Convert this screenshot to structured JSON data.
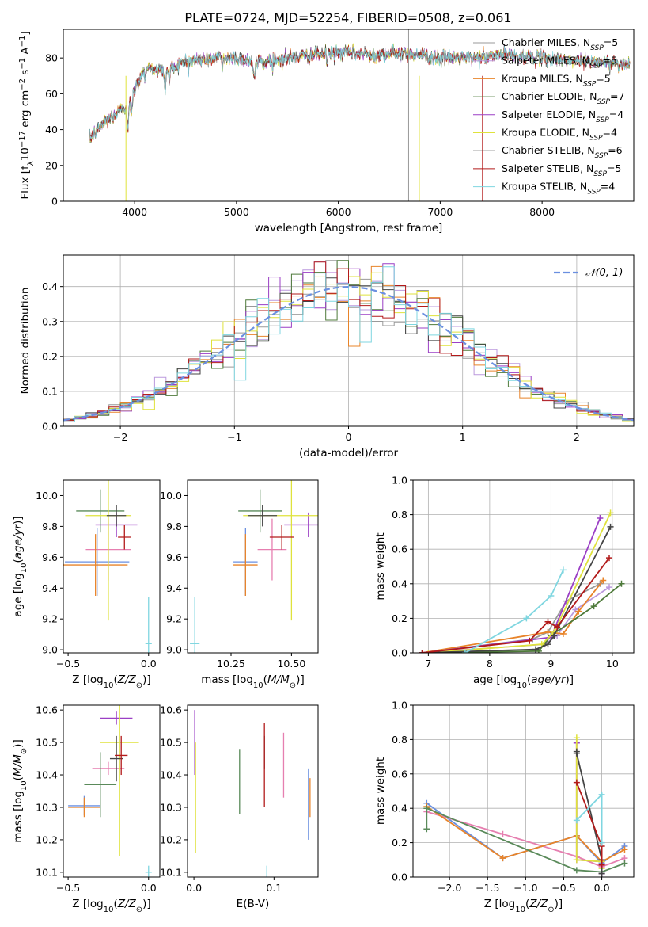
{
  "figure": {
    "title": "PLATE=0724, MJD=52254, FIBERID=0508, z=0.061"
  },
  "colors": {
    "Chabrier MILES": "#999999",
    "Salpeter MILES": "#bb99dd",
    "Kroupa MILES": "#e8842a",
    "Chabrier ELODIE": "#4e7a3a",
    "Salpeter ELODIE": "#9b3fc5",
    "Kroupa ELODIE": "#dfe23c",
    "Chabrier STELIB": "#444444",
    "Salpeter STELIB": "#b21a1a",
    "Kroupa STELIB": "#7fd6e0",
    "Panel blue": "#6a8fe0",
    "Panel pink": "#e67fb0",
    "Panel green": "#5a8a5a",
    "grid": "#b0b0b0"
  },
  "chart_data": [
    {
      "type": "line",
      "id": "spectrum",
      "xlabel": "wavelength [Angstrom, rest frame]",
      "ylabel": "Flux [f_λ10^-17 erg cm^-2 s^-1 A^-1]",
      "xlim": [
        3300,
        8900
      ],
      "ylim": [
        0,
        96
      ],
      "xticks": [
        4000,
        5000,
        6000,
        7000,
        8000
      ],
      "yticks": [
        0,
        20,
        40,
        60,
        80
      ],
      "legend_position": "top-right",
      "legend": [
        "Chabrier MILES, N_SSP=5",
        "Salpeter MILES, N_SSP=5",
        "Kroupa MILES, N_SSP=5",
        "Chabrier ELODIE, N_SSP=7",
        "Salpeter ELODIE, N_SSP=4",
        "Kroupa ELODIE, N_SSP=4",
        "Chabrier STELIB, N_SSP=6",
        "Salpeter STELIB, N_SSP=5",
        "Kroupa STELIB, N_SSP=4"
      ],
      "legend_series": [
        "Chabrier MILES",
        "Salpeter MILES",
        "Kroupa MILES",
        "Chabrier ELODIE",
        "Salpeter ELODIE",
        "Kroupa ELODIE",
        "Chabrier STELIB",
        "Salpeter STELIB",
        "Kroupa STELIB"
      ],
      "continuum": [
        [
          3560,
          35
        ],
        [
          3700,
          44
        ],
        [
          3900,
          52
        ],
        [
          4000,
          62
        ],
        [
          4100,
          75
        ],
        [
          4300,
          73
        ],
        [
          4500,
          78
        ],
        [
          4800,
          80
        ],
        [
          5000,
          80
        ],
        [
          5200,
          78
        ],
        [
          5500,
          80
        ],
        [
          5800,
          82
        ],
        [
          6000,
          83
        ],
        [
          6300,
          82
        ],
        [
          6600,
          83
        ],
        [
          6800,
          82
        ],
        [
          7000,
          80
        ],
        [
          7200,
          80
        ],
        [
          7400,
          80
        ],
        [
          7600,
          82
        ],
        [
          8000,
          80
        ],
        [
          8400,
          78
        ],
        [
          8800,
          77
        ]
      ],
      "grid": false
    },
    {
      "type": "step",
      "id": "residuals",
      "xlabel": "(data-model)/error",
      "ylabel": "Normed distribution",
      "xlim": [
        -2.5,
        2.5
      ],
      "ylim": [
        0,
        0.49
      ],
      "xticks": [
        -2,
        -1,
        0,
        1,
        2
      ],
      "yticks": [
        0.0,
        0.1,
        0.2,
        0.3,
        0.4
      ],
      "legend": [
        "𝒩(0, 1)"
      ],
      "legend_position": "top-right",
      "grid": true
    },
    {
      "type": "errorbar",
      "id": "age-vs-Z",
      "xlabel": "Z [log10(Z/Z⊙)]",
      "ylabel": "age [log10(age/yr)]",
      "xlim": [
        -0.53,
        0.07
      ],
      "ylim": [
        8.98,
        10.1
      ],
      "xticks": [
        -0.5,
        0.0
      ],
      "yticks": [
        9.0,
        9.2,
        9.4,
        9.6,
        9.8,
        10.0
      ],
      "points": [
        {
          "s": "Panel blue",
          "x": -0.32,
          "xe": 0.2,
          "y": 9.57,
          "ye": 0.22
        },
        {
          "s": "Panel pink",
          "x": -0.25,
          "xe": 0.14,
          "y": 9.65,
          "ye": 0.2
        },
        {
          "s": "Kroupa MILES",
          "x": -0.33,
          "xe": 0.2,
          "y": 9.55,
          "ye": 0.2
        },
        {
          "s": "Panel green",
          "x": -0.3,
          "xe": 0.15,
          "y": 9.9,
          "ye": 0.14
        },
        {
          "s": "Salpeter ELODIE",
          "x": -0.2,
          "xe": 0.13,
          "y": 9.81,
          "ye": 0.08
        },
        {
          "s": "Kroupa ELODIE",
          "x": -0.25,
          "xe": 0.14,
          "y": 9.87,
          "ye": 0.68
        },
        {
          "s": "Chabrier STELIB",
          "x": -0.2,
          "xe": 0.06,
          "y": 9.87,
          "ye": 0.07
        },
        {
          "s": "Salpeter STELIB",
          "x": -0.15,
          "xe": 0.04,
          "y": 9.73,
          "ye": 0.08
        },
        {
          "s": "Kroupa STELIB",
          "x": 0.0,
          "xe": 0.02,
          "y": 9.04,
          "ye": 0.3
        }
      ],
      "grid": false
    },
    {
      "type": "errorbar",
      "id": "age-vs-mass",
      "xlabel": "mass [log10(M/M⊙)]",
      "ylabel": "",
      "xlim": [
        10.07,
        10.61
      ],
      "ylim": [
        8.98,
        10.1
      ],
      "xticks": [
        10.25,
        10.5
      ],
      "yticks": [
        9.0,
        9.2,
        9.4,
        9.6,
        9.8,
        10.0
      ],
      "points": [
        {
          "s": "Panel blue",
          "x": 10.31,
          "xe": 0.05,
          "y": 9.57,
          "ye": 0.22
        },
        {
          "s": "Panel pink",
          "x": 10.42,
          "xe": 0.06,
          "y": 9.65,
          "ye": 0.2
        },
        {
          "s": "Kroupa MILES",
          "x": 10.31,
          "xe": 0.05,
          "y": 9.55,
          "ye": 0.2
        },
        {
          "s": "Panel green",
          "x": 10.37,
          "xe": 0.09,
          "y": 9.9,
          "ye": 0.14
        },
        {
          "s": "Salpeter ELODIE",
          "x": 10.57,
          "xe": 0.1,
          "y": 9.81,
          "ye": 0.08
        },
        {
          "s": "Kroupa ELODIE",
          "x": 10.5,
          "xe": 0.2,
          "y": 9.87,
          "ye": 0.68
        },
        {
          "s": "Chabrier STELIB",
          "x": 10.38,
          "xe": 0.06,
          "y": 9.87,
          "ye": 0.07
        },
        {
          "s": "Salpeter STELIB",
          "x": 10.46,
          "xe": 0.05,
          "y": 9.73,
          "ye": 0.08
        },
        {
          "s": "Kroupa STELIB",
          "x": 10.1,
          "xe": 0.02,
          "y": 9.04,
          "ye": 0.3
        }
      ],
      "grid": false
    },
    {
      "type": "line",
      "id": "weight-vs-age",
      "xlabel": "age [log10(age/yr)]",
      "ylabel": "mass weight",
      "xlim": [
        6.75,
        10.35
      ],
      "ylim": [
        0.0,
        1.0
      ],
      "xticks": [
        7,
        8,
        9,
        10
      ],
      "yticks": [
        0.0,
        0.2,
        0.4,
        0.6,
        0.8,
        1.0
      ],
      "series": [
        {
          "name": "Chabrier MILES",
          "x": [
            6.9,
            8.7,
            8.95,
            9.25,
            9.8
          ],
          "y": [
            0.0,
            0.08,
            0.12,
            0.3,
            0.4
          ]
        },
        {
          "name": "Salpeter MILES",
          "x": [
            6.9,
            8.9,
            9.1,
            9.4,
            9.95
          ],
          "y": [
            0.0,
            0.05,
            0.1,
            0.25,
            0.38
          ]
        },
        {
          "name": "Kroupa MILES",
          "x": [
            6.9,
            8.95,
            9.2,
            9.45,
            9.85
          ],
          "y": [
            0.0,
            0.12,
            0.11,
            0.24,
            0.42
          ]
        },
        {
          "name": "Chabrier ELODIE",
          "x": [
            6.9,
            8.8,
            9.0,
            9.7,
            10.15
          ],
          "y": [
            0.0,
            0.01,
            0.1,
            0.27,
            0.4
          ]
        },
        {
          "name": "Salpeter ELODIE",
          "x": [
            6.9,
            9.0,
            9.8
          ],
          "y": [
            0.0,
            0.09,
            0.78
          ]
        },
        {
          "name": "Kroupa ELODIE",
          "x": [
            7.0,
            8.85,
            9.05,
            9.97
          ],
          "y": [
            0.0,
            0.05,
            0.12,
            0.81
          ]
        },
        {
          "name": "Chabrier STELIB",
          "x": [
            6.9,
            8.75,
            8.95,
            9.05,
            9.97
          ],
          "y": [
            0.0,
            0.02,
            0.05,
            0.1,
            0.73
          ]
        },
        {
          "name": "Salpeter STELIB",
          "x": [
            6.9,
            8.65,
            8.95,
            9.1,
            9.95
          ],
          "y": [
            0.0,
            0.07,
            0.18,
            0.15,
            0.55
          ]
        },
        {
          "name": "Kroupa STELIB",
          "x": [
            7.6,
            8.6,
            9.0,
            9.2
          ],
          "y": [
            0.0,
            0.2,
            0.33,
            0.48
          ]
        }
      ],
      "grid": true
    },
    {
      "type": "errorbar",
      "id": "mass-vs-Z",
      "xlabel": "Z [log10(Z/Z⊙)]",
      "ylabel": "mass [log10(M/M⊙)]",
      "xlim": [
        -0.53,
        0.07
      ],
      "ylim": [
        10.085,
        10.615
      ],
      "xticks": [
        -0.5,
        0.0
      ],
      "yticks": [
        10.1,
        10.2,
        10.3,
        10.4,
        10.5,
        10.6
      ],
      "points": [
        {
          "s": "Panel blue",
          "x": -0.4,
          "xe": 0.1,
          "y": 10.305,
          "ye": 0.03
        },
        {
          "s": "Panel pink",
          "x": -0.25,
          "xe": 0.1,
          "y": 10.42,
          "ye": 0.02
        },
        {
          "s": "Kroupa MILES",
          "x": -0.4,
          "xe": 0.1,
          "y": 10.3,
          "ye": 0.03
        },
        {
          "s": "Panel green",
          "x": -0.3,
          "xe": 0.1,
          "y": 10.37,
          "ye": 0.1
        },
        {
          "s": "Salpeter ELODIE",
          "x": -0.2,
          "xe": 0.1,
          "y": 10.575,
          "ye": 0.02
        },
        {
          "s": "Kroupa ELODIE",
          "x": -0.18,
          "xe": 0.12,
          "y": 10.5,
          "ye": 0.35
        },
        {
          "s": "Chabrier STELIB",
          "x": -0.2,
          "xe": 0.04,
          "y": 10.45,
          "ye": 0.07
        },
        {
          "s": "Salpeter STELIB",
          "x": -0.17,
          "xe": 0.04,
          "y": 10.46,
          "ye": 0.06
        },
        {
          "s": "Kroupa STELIB",
          "x": 0.0,
          "xe": 0.02,
          "y": 10.1,
          "ye": 0.02
        }
      ],
      "grid": false
    },
    {
      "type": "errorbar",
      "id": "mass-vs-ebv",
      "xlabel": "E(B-V)",
      "ylabel": "",
      "xlim": [
        -0.008,
        0.155
      ],
      "ylim": [
        10.085,
        10.615
      ],
      "xticks": [
        0.0,
        0.1
      ],
      "yticks": [
        10.1,
        10.2,
        10.3,
        10.4,
        10.5,
        10.6
      ],
      "points": [
        {
          "s": "Panel blue",
          "x": 0.143,
          "xe": 0.0,
          "y": 10.31,
          "ye": 0.11
        },
        {
          "s": "Panel pink",
          "x": 0.112,
          "xe": 0.0,
          "y": 10.43,
          "ye": 0.1
        },
        {
          "s": "Kroupa MILES",
          "x": 0.145,
          "xe": 0.0,
          "y": 10.33,
          "ye": 0.06
        },
        {
          "s": "Panel green",
          "x": 0.057,
          "xe": 0.0,
          "y": 10.38,
          "ye": 0.1
        },
        {
          "s": "Salpeter ELODIE",
          "x": 0.001,
          "xe": 0.0,
          "y": 10.5,
          "ye": 0.1
        },
        {
          "s": "Kroupa ELODIE",
          "x": 0.002,
          "xe": 0.0,
          "y": 10.33,
          "ye": 0.17
        },
        {
          "s": "Chabrier STELIB",
          "x": 0.088,
          "xe": 0.0,
          "y": 10.47,
          "ye": 0.05
        },
        {
          "s": "Salpeter STELIB",
          "x": 0.088,
          "xe": 0.0,
          "y": 10.43,
          "ye": 0.13
        },
        {
          "s": "Kroupa STELIB",
          "x": 0.091,
          "xe": 0.0,
          "y": 10.1,
          "ye": 0.02
        }
      ],
      "grid": false
    },
    {
      "type": "line",
      "id": "weight-vs-Z",
      "xlabel": "Z [log10(Z/Z⊙)]",
      "ylabel": "mass weight",
      "xlim": [
        -2.48,
        0.42
      ],
      "ylim": [
        0.0,
        1.0
      ],
      "xticks": [
        -2.0,
        -1.5,
        -1.0,
        -0.5,
        0.0
      ],
      "yticks": [
        0.0,
        0.2,
        0.4,
        0.6,
        0.8,
        1.0
      ],
      "series": [
        {
          "name": "Panel blue",
          "x": [
            -2.3,
            -1.3,
            -0.33,
            0.0,
            0.3
          ],
          "y": [
            0.43,
            0.11,
            0.24,
            0.08,
            0.18
          ]
        },
        {
          "name": "Panel pink",
          "x": [
            -2.3,
            -1.3,
            -0.33,
            0.0,
            0.3
          ],
          "y": [
            0.38,
            0.25,
            0.12,
            0.06,
            0.11
          ]
        },
        {
          "name": "Kroupa MILES",
          "x": [
            -2.3,
            -1.3,
            -0.33,
            0.0,
            0.3
          ],
          "y": [
            0.41,
            0.11,
            0.24,
            0.09,
            0.16
          ]
        },
        {
          "name": "Panel green",
          "x": [
            -2.3,
            -2.3,
            -0.33,
            0.0,
            0.3
          ],
          "y": [
            0.28,
            0.4,
            0.04,
            0.03,
            0.08
          ]
        },
        {
          "name": "Salpeter ELODIE",
          "x": [
            -0.33,
            -0.33,
            0.0,
            0.0
          ],
          "y": [
            0.78,
            0.1,
            0.09,
            0.02
          ]
        },
        {
          "name": "Kroupa ELODIE",
          "x": [
            -0.33,
            -0.33,
            0.0,
            0.0
          ],
          "y": [
            0.81,
            0.1,
            0.09,
            0.05
          ]
        },
        {
          "name": "Chabrier STELIB",
          "x": [
            -0.33,
            -0.33,
            0.0,
            0.0
          ],
          "y": [
            0.73,
            0.72,
            0.1,
            0.02
          ]
        },
        {
          "name": "Salpeter STELIB",
          "x": [
            -0.33,
            0.0,
            0.0
          ],
          "y": [
            0.55,
            0.18,
            0.07
          ]
        },
        {
          "name": "Kroupa STELIB",
          "x": [
            -0.33,
            0.0,
            0.0
          ],
          "y": [
            0.33,
            0.48,
            0.2
          ]
        }
      ],
      "grid": true
    }
  ]
}
